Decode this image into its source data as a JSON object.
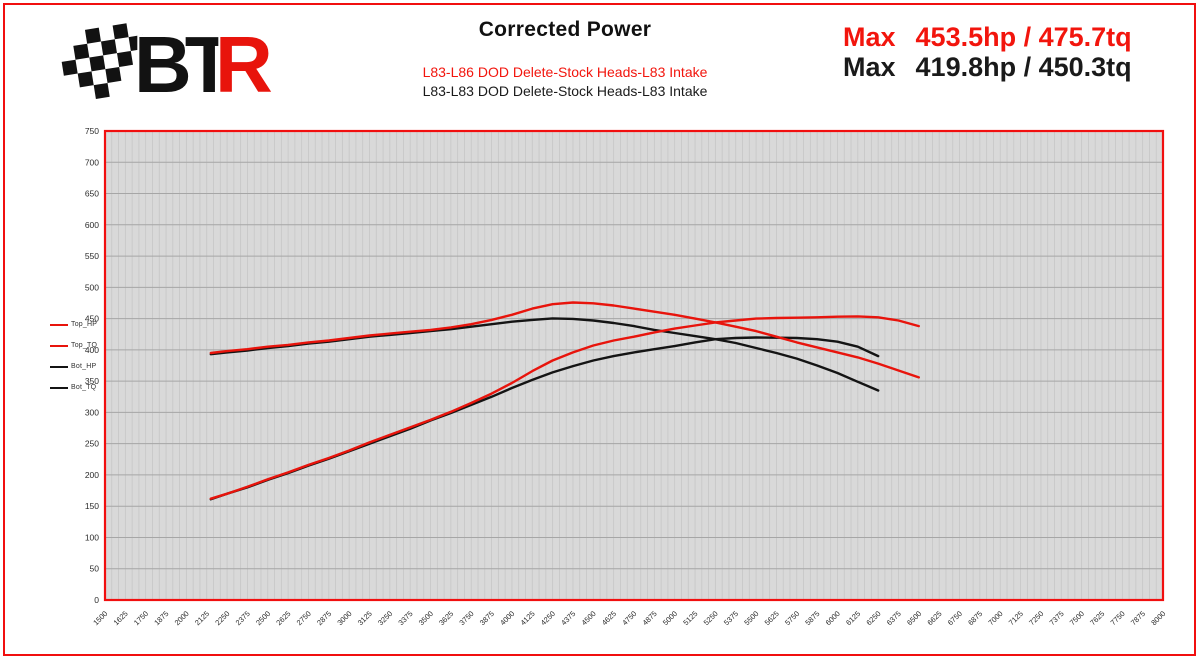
{
  "header": {
    "logo": {
      "text_bt": "BT",
      "text_r": "R"
    },
    "title": "Corrected Power",
    "subtitle_red": "L83-L86 DOD Delete-Stock Heads-L83 Intake",
    "subtitle_black": "L83-L83 DOD Delete-Stock Heads-L83 Intake",
    "max_red": {
      "label": "Max",
      "value": "453.5hp / 475.7tq"
    },
    "max_black": {
      "label": "Max",
      "value": "419.8hp / 450.3tq"
    }
  },
  "legend": {
    "items": [
      {
        "label": "Top_HP",
        "color": "#e8140c"
      },
      {
        "label": "Top_TQ",
        "color": "#e8140c"
      },
      {
        "label": "Bot_HP",
        "color": "#141414"
      },
      {
        "label": "Bot_TQ",
        "color": "#141414"
      }
    ]
  },
  "chart_data": {
    "type": "line",
    "title": "Corrected Power",
    "x_ticks": {
      "start": 1500,
      "end": 8000,
      "step": 125
    },
    "x_minor_grid_step": 41.6667,
    "ylim": [
      0,
      750
    ],
    "y_tick_step": 50,
    "plot_bg": "#d9d9d9",
    "grid_color_vertical": "#c6c6c6",
    "grid_color_horizontal": "#a6a6a6",
    "frame_color": "#f10f0f",
    "tick_label_color": "#2b2b2b",
    "legend_position": "left",
    "series": [
      {
        "name": "Bot_TQ",
        "color": "#141414",
        "points": [
          [
            2150,
            393
          ],
          [
            2250,
            396
          ],
          [
            2375,
            399
          ],
          [
            2500,
            403
          ],
          [
            2625,
            406
          ],
          [
            2750,
            410
          ],
          [
            2875,
            413
          ],
          [
            3000,
            417
          ],
          [
            3125,
            421
          ],
          [
            3250,
            424
          ],
          [
            3375,
            427
          ],
          [
            3500,
            430
          ],
          [
            3625,
            433
          ],
          [
            3750,
            437
          ],
          [
            3875,
            441
          ],
          [
            4000,
            445
          ],
          [
            4125,
            448
          ],
          [
            4250,
            450.3
          ],
          [
            4375,
            449.5
          ],
          [
            4500,
            447
          ],
          [
            4625,
            443
          ],
          [
            4750,
            438
          ],
          [
            4875,
            432
          ],
          [
            5000,
            427
          ],
          [
            5125,
            422
          ],
          [
            5250,
            417
          ],
          [
            5375,
            411
          ],
          [
            5500,
            403
          ],
          [
            5625,
            395
          ],
          [
            5750,
            386
          ],
          [
            5875,
            375
          ],
          [
            6000,
            363
          ],
          [
            6125,
            349
          ],
          [
            6250,
            335
          ]
        ]
      },
      {
        "name": "Bot_HP",
        "color": "#141414",
        "points": [
          [
            2150,
            161
          ],
          [
            2250,
            170
          ],
          [
            2375,
            180
          ],
          [
            2500,
            192
          ],
          [
            2625,
            203
          ],
          [
            2750,
            215
          ],
          [
            2875,
            226
          ],
          [
            3000,
            238
          ],
          [
            3125,
            250
          ],
          [
            3250,
            262
          ],
          [
            3375,
            274
          ],
          [
            3500,
            287
          ],
          [
            3625,
            299
          ],
          [
            3750,
            312
          ],
          [
            3875,
            325
          ],
          [
            4000,
            339
          ],
          [
            4125,
            352
          ],
          [
            4250,
            364
          ],
          [
            4375,
            374
          ],
          [
            4500,
            383
          ],
          [
            4625,
            390
          ],
          [
            4750,
            396
          ],
          [
            4875,
            401
          ],
          [
            5000,
            406
          ],
          [
            5125,
            412
          ],
          [
            5250,
            417
          ],
          [
            5375,
            419
          ],
          [
            5500,
            419.8
          ],
          [
            5625,
            419.5
          ],
          [
            5750,
            419
          ],
          [
            5875,
            417
          ],
          [
            6000,
            413
          ],
          [
            6125,
            405
          ],
          [
            6250,
            390
          ]
        ]
      },
      {
        "name": "Top_TQ",
        "color": "#e8140c",
        "points": [
          [
            2150,
            395
          ],
          [
            2250,
            398
          ],
          [
            2375,
            401
          ],
          [
            2500,
            405
          ],
          [
            2625,
            408
          ],
          [
            2750,
            412
          ],
          [
            2875,
            415
          ],
          [
            3000,
            419
          ],
          [
            3125,
            423
          ],
          [
            3250,
            426
          ],
          [
            3375,
            429
          ],
          [
            3500,
            432
          ],
          [
            3625,
            436
          ],
          [
            3750,
            441
          ],
          [
            3875,
            448
          ],
          [
            4000,
            456
          ],
          [
            4125,
            466
          ],
          [
            4250,
            473
          ],
          [
            4375,
            475.7
          ],
          [
            4500,
            474.5
          ],
          [
            4625,
            471
          ],
          [
            4750,
            466
          ],
          [
            4875,
            461
          ],
          [
            5000,
            456
          ],
          [
            5125,
            450
          ],
          [
            5250,
            444
          ],
          [
            5375,
            437
          ],
          [
            5500,
            430
          ],
          [
            5625,
            421
          ],
          [
            5750,
            412
          ],
          [
            5875,
            404
          ],
          [
            6000,
            396
          ],
          [
            6125,
            388
          ],
          [
            6250,
            378
          ],
          [
            6375,
            367
          ],
          [
            6500,
            356
          ]
        ]
      },
      {
        "name": "Top_HP",
        "color": "#e8140c",
        "points": [
          [
            2150,
            162
          ],
          [
            2250,
            170
          ],
          [
            2375,
            181
          ],
          [
            2500,
            193
          ],
          [
            2625,
            204
          ],
          [
            2750,
            216
          ],
          [
            2875,
            227
          ],
          [
            3000,
            239
          ],
          [
            3125,
            252
          ],
          [
            3250,
            264
          ],
          [
            3375,
            276
          ],
          [
            3500,
            288
          ],
          [
            3625,
            301
          ],
          [
            3750,
            315
          ],
          [
            3875,
            330
          ],
          [
            4000,
            347
          ],
          [
            4125,
            366
          ],
          [
            4250,
            383
          ],
          [
            4375,
            396
          ],
          [
            4500,
            407
          ],
          [
            4625,
            415
          ],
          [
            4750,
            421
          ],
          [
            4875,
            428
          ],
          [
            5000,
            434
          ],
          [
            5125,
            439
          ],
          [
            5250,
            444
          ],
          [
            5375,
            447
          ],
          [
            5500,
            450
          ],
          [
            5625,
            451
          ],
          [
            5750,
            451.5
          ],
          [
            5875,
            452
          ],
          [
            6000,
            453
          ],
          [
            6125,
            453.5
          ],
          [
            6250,
            452
          ],
          [
            6375,
            447
          ],
          [
            6500,
            438
          ]
        ]
      }
    ]
  }
}
